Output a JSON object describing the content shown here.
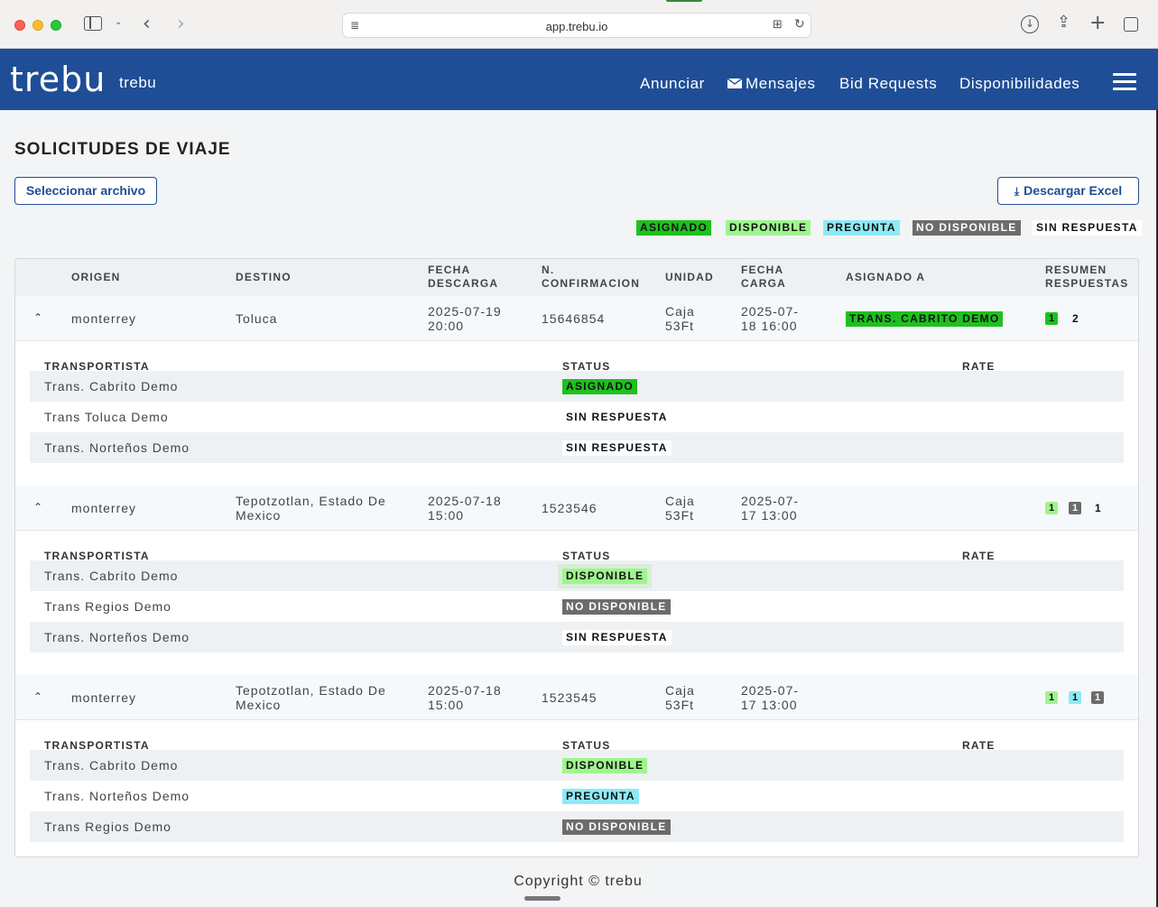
{
  "browser": {
    "url": "app.trebu.io"
  },
  "navbar": {
    "logo": "trebu",
    "brand": "trebu",
    "links": [
      {
        "label": "Anunciar"
      },
      {
        "label": "Mensajes",
        "icon": "envelope-icon"
      },
      {
        "label": "Bid Requests"
      },
      {
        "label": "Disponibilidades"
      }
    ]
  },
  "page": {
    "title": "SOLICITUDES DE VIAJE",
    "select_file": "Seleccionar archivo",
    "download_excel": "Descargar Excel"
  },
  "legend": [
    {
      "label": "ASIGNADO",
      "color": "#1fc01f"
    },
    {
      "label": "DISPONIBLE",
      "color": "#9ef58e"
    },
    {
      "label": "PREGUNTA",
      "color": "#8eeaf6"
    },
    {
      "label": "NO DISPONIBLE",
      "color": "#6c6c6c"
    },
    {
      "label": "SIN RESPUESTA",
      "color": "#ffffff"
    }
  ],
  "table": {
    "headers": {
      "origen": "ORIGEN",
      "destino": "DESTINO",
      "fecha_descarga": "FECHA DESCARGA",
      "confirmacion": "N. CONFIRMACION",
      "unidad": "UNIDAD",
      "fecha_carga": "FECHA CARGA",
      "asignado": "ASIGNADO A",
      "resumen": "RESUMEN RESPUESTAS"
    },
    "sub_headers": {
      "transportista": "TRANSPORTISTA",
      "status": "STATUS",
      "rate": "RATE"
    },
    "rows": [
      {
        "origen": "monterrey",
        "destino": "Toluca",
        "fecha_descarga": "2025-07-19 20:00",
        "confirmacion": "15646854",
        "unidad": "Caja 53Ft",
        "fecha_carga": "2025-07-18 16:00",
        "asignado": "TRANS. CABRITO DEMO",
        "summary": {
          "asignado": "1",
          "sin_respuesta": "2"
        },
        "carriers": [
          {
            "name": "Trans. Cabrito Demo",
            "status": "ASIGNADO"
          },
          {
            "name": "Trans Toluca Demo",
            "status": "SIN RESPUESTA"
          },
          {
            "name": "Trans. Norteños Demo",
            "status": "SIN RESPUESTA"
          }
        ]
      },
      {
        "origen": "monterrey",
        "destino": "Tepotzotlan, Estado De Mexico",
        "fecha_descarga": "2025-07-18 15:00",
        "confirmacion": "1523546",
        "unidad": "Caja 53Ft",
        "fecha_carga": "2025-07-17 13:00",
        "asignado": "",
        "summary": {
          "disponible": "1",
          "no_disponible": "1",
          "sin_respuesta": "1"
        },
        "carriers": [
          {
            "name": "Trans. Cabrito Demo",
            "status": "DISPONIBLE"
          },
          {
            "name": "Trans Regios Demo",
            "status": "NO DISPONIBLE"
          },
          {
            "name": "Trans. Norteños Demo",
            "status": "SIN RESPUESTA"
          }
        ]
      },
      {
        "origen": "monterrey",
        "destino": "Tepotzotlan, Estado De Mexico",
        "fecha_descarga": "2025-07-18 15:00",
        "confirmacion": "1523545",
        "unidad": "Caja 53Ft",
        "fecha_carga": "2025-07-17 13:00",
        "asignado": "",
        "summary": {
          "disponible": "1",
          "pregunta": "1",
          "no_disponible": "1"
        },
        "carriers": [
          {
            "name": "Trans. Cabrito Demo",
            "status": "DISPONIBLE"
          },
          {
            "name": "Trans. Norteños Demo",
            "status": "PREGUNTA"
          },
          {
            "name": "Trans Regios Demo",
            "status": "NO DISPONIBLE"
          }
        ]
      }
    ]
  },
  "footer": "Copyright © trebu"
}
